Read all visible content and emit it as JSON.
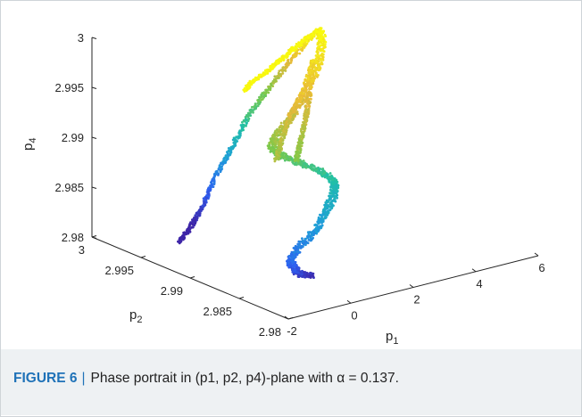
{
  "chart_data": {
    "type": "scatter",
    "projection": "3d",
    "axes": {
      "x": {
        "label": "p",
        "label_sub": "1",
        "ticks": [
          "-2",
          "0",
          "2",
          "4",
          "6"
        ],
        "range": [
          -2,
          6
        ]
      },
      "y": {
        "label": "p",
        "label_sub": "2",
        "ticks": [
          "2.98",
          "2.985",
          "2.99",
          "2.995",
          "3"
        ],
        "range": [
          2.98,
          3
        ]
      },
      "z": {
        "label": "p",
        "label_sub": "4",
        "ticks": [
          "2.98",
          "2.985",
          "2.99",
          "2.995",
          "3"
        ],
        "range": [
          2.98,
          3
        ]
      }
    },
    "grid": false,
    "colormap": [
      "#3e26a8",
      "#2e60f1",
      "#1f9fd8",
      "#20c0a6",
      "#7cc94a",
      "#e8b93a",
      "#f9fb0e"
    ],
    "series": [
      {
        "points_approx": [
          [
            0.3,
            2.985,
            2.9805
          ],
          [
            -0.2,
            2.9845,
            2.9812
          ],
          [
            -0.7,
            2.9835,
            2.9825
          ],
          [
            -1.0,
            2.983,
            2.9838
          ],
          [
            -0.8,
            2.9828,
            2.985
          ],
          [
            -0.2,
            2.983,
            2.9862
          ],
          [
            0.3,
            2.9835,
            2.9874
          ],
          [
            0.7,
            2.984,
            2.9885
          ],
          [
            0.9,
            2.9845,
            2.9895
          ],
          [
            0.7,
            2.985,
            2.9905
          ],
          [
            0.2,
            2.9855,
            2.9915
          ],
          [
            -0.3,
            2.9858,
            2.9925
          ],
          [
            -0.6,
            2.9862,
            2.9935
          ],
          [
            -0.3,
            2.9866,
            2.9945
          ],
          [
            0.3,
            2.987,
            2.9955
          ],
          [
            1.0,
            2.988,
            2.9965
          ],
          [
            1.6,
            2.989,
            2.9975
          ],
          [
            2.2,
            2.9902,
            2.9985
          ],
          [
            2.7,
            2.9915,
            2.9995
          ],
          [
            2.9,
            2.9925,
            3.0
          ]
        ]
      },
      {
        "points_approx": [
          [
            2.9,
            2.9925,
            3.0
          ],
          [
            2.4,
            2.9935,
            2.9972
          ],
          [
            2.0,
            2.9945,
            2.9943
          ],
          [
            1.6,
            2.9955,
            2.9912
          ],
          [
            1.3,
            2.9962,
            2.988
          ],
          [
            1.0,
            2.997,
            2.9848
          ],
          [
            0.8,
            2.9977,
            2.9817
          ],
          [
            0.6,
            2.9983,
            2.9795
          ],
          [
            0.4,
            2.9988,
            2.978
          ]
        ]
      },
      {
        "points_approx": [
          [
            2.9,
            2.9925,
            3.0
          ],
          [
            1.8,
            2.991,
            3.0
          ],
          [
            0.8,
            2.9895,
            3.0
          ],
          [
            -0.2,
            2.988,
            3.0
          ],
          [
            -1.0,
            2.987,
            3.0
          ],
          [
            -1.5,
            2.986,
            3.0
          ]
        ]
      },
      {
        "points_approx": [
          [
            2.0,
            2.9902,
            2.9985
          ],
          [
            1.0,
            2.988,
            2.9972
          ],
          [
            0.0,
            2.9862,
            2.9962
          ],
          [
            -0.9,
            2.9842,
            2.9952
          ],
          [
            -1.6,
            2.9825,
            2.9945
          ]
        ]
      },
      {
        "points_approx": [
          [
            1.2,
            2.988,
            2.9968
          ],
          [
            0.5,
            2.9862,
            2.9955
          ],
          [
            -0.2,
            2.9845,
            2.9945
          ],
          [
            -0.8,
            2.983,
            2.9936
          ]
        ]
      }
    ]
  },
  "caption": {
    "label": "FIGURE 6",
    "separator": "|",
    "text": "Phase portrait in (p1, p2, p4)-plane with α = 0.137."
  }
}
